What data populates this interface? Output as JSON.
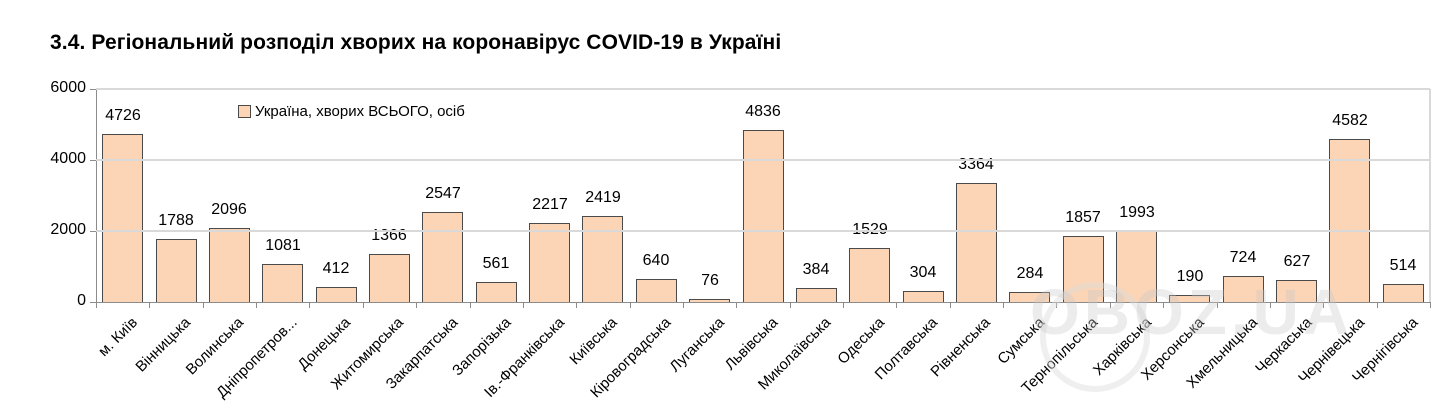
{
  "title": "3.4.  Регіональний розподіл хворих на коронавірус COVID-19 в Україні",
  "legend": {
    "label": "Україна, хворих ВСЬОГО, осіб",
    "color": "#fbd5b5"
  },
  "watermark": "OBOZ.UA",
  "chart_data": {
    "type": "bar",
    "title": "3.4.  Регіональний розподіл хворих на коронавірус COVID-19 в Україні",
    "xlabel": "",
    "ylabel": "",
    "ylim": [
      0,
      6000
    ],
    "yticks": [
      0,
      2000,
      4000,
      6000
    ],
    "grid": true,
    "legend_position": "top-left inside",
    "categories": [
      "м. Київ",
      "Вінницька",
      "Волинська",
      "Дніпропетров...",
      "Донецька",
      "Житомирська",
      "Закарпатська",
      "Запорізька",
      "Ів.-Франківська",
      "Київська",
      "Кіровоградська",
      "Луганська",
      "Львівська",
      "Миколаївська",
      "Одеська",
      "Полтавська",
      "Рівненська",
      "Сумська",
      "Тернопільська",
      "Харківська",
      "Херсонська",
      "Хмельницька",
      "Черкаська",
      "Чернівецька",
      "Чернігівська"
    ],
    "series": [
      {
        "name": "Україна, хворих ВСЬОГО, осіб",
        "values": [
          4726,
          1788,
          2096,
          1081,
          412,
          1366,
          2547,
          561,
          2217,
          2419,
          640,
          76,
          4836,
          384,
          1529,
          304,
          3364,
          284,
          1857,
          1993,
          190,
          724,
          627,
          4582,
          514
        ]
      }
    ]
  }
}
